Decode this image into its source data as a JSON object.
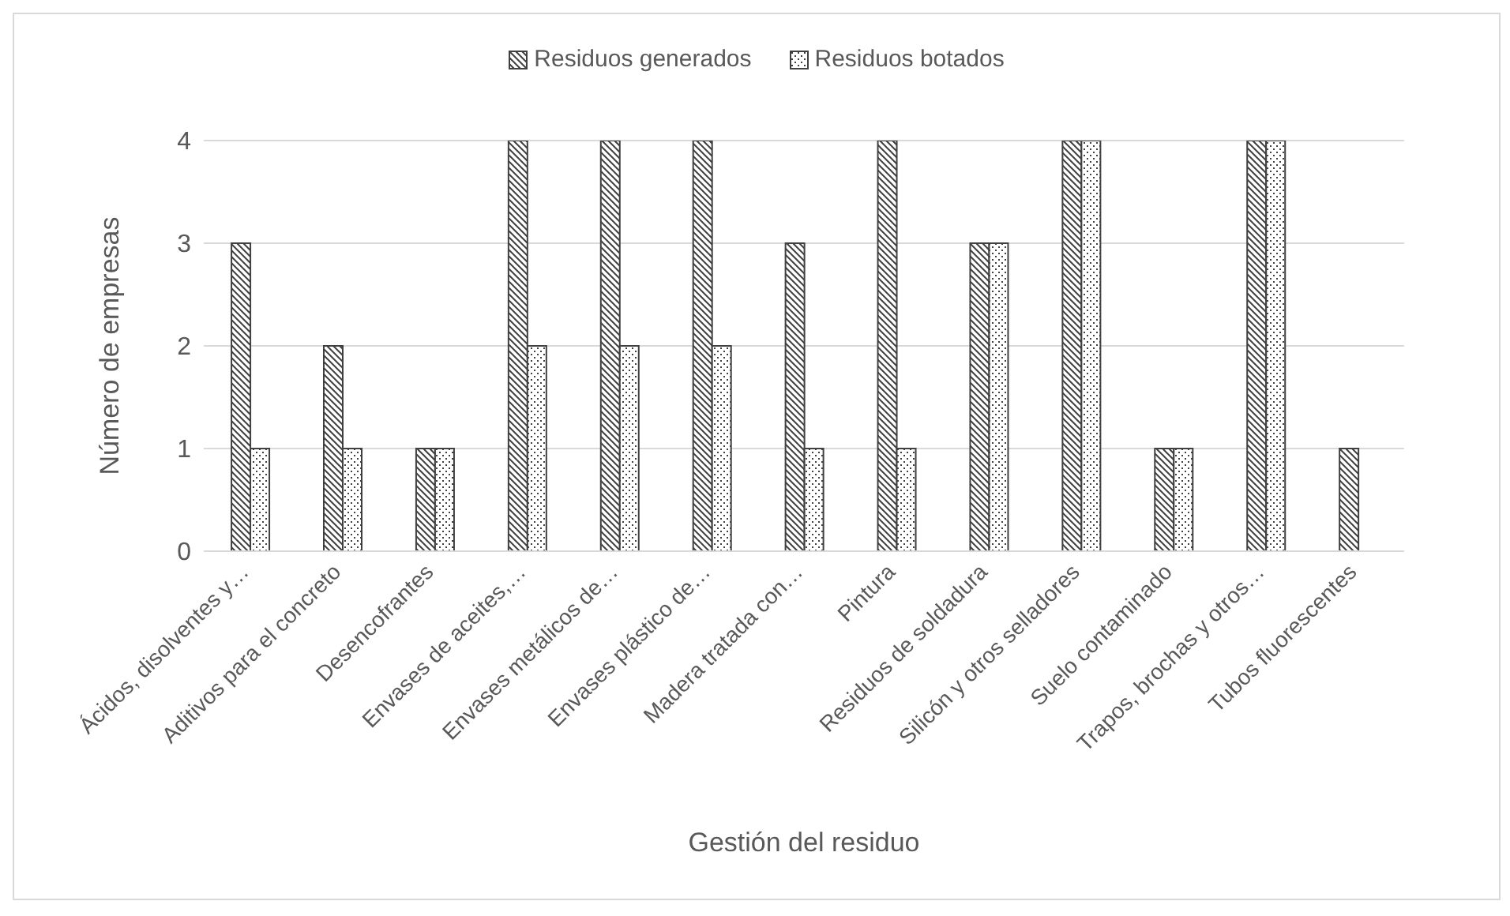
{
  "chart_data": {
    "type": "bar",
    "xlabel": "Gestión del residuo",
    "ylabel": "Número de empresas",
    "categories": [
      "Ácidos, disolventes y…",
      "Aditivos para el concreto",
      "Desencofrantes",
      "Envases de aceites,…",
      "Envases metálicos de…",
      "Envases plástico de…",
      "Madera tratada con…",
      "Pintura",
      "Residuos de soldadura",
      "Silicón y otros selladores",
      "Suelo contaminado",
      "Trapos, brochas y otros…",
      "Tubos fluorescentes"
    ],
    "series": [
      {
        "name": "Residuos generados",
        "color": "#404040",
        "values": [
          3,
          2,
          1,
          4,
          4,
          4,
          3,
          4,
          3,
          4,
          1,
          4,
          1
        ]
      },
      {
        "name": "Residuos botados",
        "color": "#404040",
        "values": [
          1,
          1,
          1,
          2,
          2,
          2,
          1,
          1,
          3,
          4,
          1,
          4,
          0
        ]
      }
    ],
    "ylim": [
      0,
      4
    ],
    "yticks": [
      0,
      1,
      2,
      3,
      4
    ],
    "grid": "y",
    "legend": "top"
  }
}
